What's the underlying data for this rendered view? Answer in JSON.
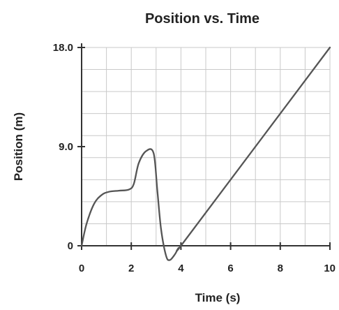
{
  "chart_data": {
    "type": "line",
    "title": "Position vs. Time",
    "xlabel": "Time (s)",
    "ylabel": "Position (m)",
    "xlim": [
      0,
      10
    ],
    "ylim": [
      0,
      18
    ],
    "x_ticks": [
      {
        "value": 0,
        "label": "0"
      },
      {
        "value": 2,
        "label": "2"
      },
      {
        "value": 4,
        "label": "4"
      },
      {
        "value": 6,
        "label": "6"
      },
      {
        "value": 8,
        "label": "8"
      },
      {
        "value": 10,
        "label": "10"
      }
    ],
    "y_ticks": [
      {
        "value": 0,
        "label": "0"
      },
      {
        "value": 9,
        "label": "9.0"
      },
      {
        "value": 18,
        "label": "18.0"
      }
    ],
    "grid": true,
    "series": [
      {
        "x": [
          0,
          0.2,
          0.5,
          0.8,
          1.1,
          1.5,
          1.9,
          2.1,
          2.3,
          2.6,
          2.9,
          3.05,
          3.2,
          3.4,
          3.55,
          3.75,
          3.9,
          4.0,
          6.0,
          8.0,
          10.0
        ],
        "y": [
          0,
          2.0,
          3.8,
          4.6,
          4.9,
          5.0,
          5.1,
          5.6,
          7.5,
          8.6,
          8.4,
          5.0,
          1.5,
          -0.9,
          -1.3,
          -0.8,
          -0.2,
          0,
          6.0,
          12.0,
          18.0
        ]
      }
    ]
  }
}
